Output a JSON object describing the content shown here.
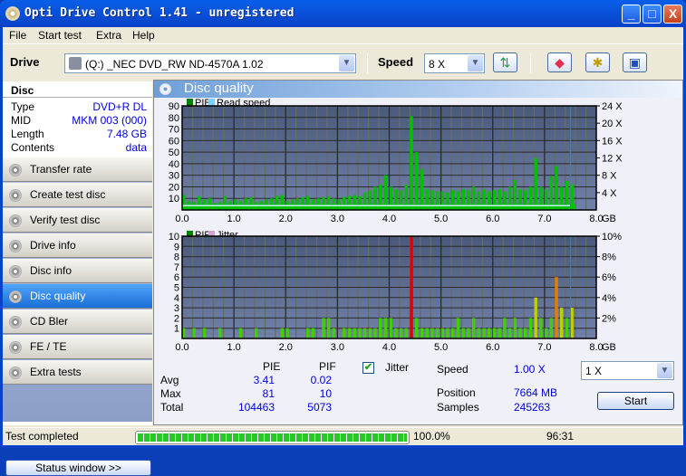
{
  "window": {
    "title": "Opti Drive Control 1.41 - unregistered",
    "minimize": "_",
    "maximize": "□",
    "close": "X"
  },
  "menu": [
    "File",
    "Start test",
    "Extra",
    "Help"
  ],
  "toolbar": {
    "drive_label": "Drive",
    "drive_value": "(Q:)   _NEC DVD_RW ND-4570A 1.02",
    "speed_label": "Speed",
    "speed_value": "8 X",
    "icons": [
      "refresh-icon",
      "eraser-icon",
      "burn-settings-icon",
      "save-icon"
    ]
  },
  "disc": {
    "header": "Disc",
    "rows": [
      {
        "k": "Type",
        "v": "DVD+R DL"
      },
      {
        "k": "MID",
        "v": "MKM 003 (000)"
      },
      {
        "k": "Length",
        "v": "7.48 GB"
      },
      {
        "k": "Contents",
        "v": "data"
      }
    ]
  },
  "nav": [
    {
      "label": "Transfer rate"
    },
    {
      "label": "Create test disc"
    },
    {
      "label": "Verify test disc"
    },
    {
      "label": "Drive info"
    },
    {
      "label": "Disc info"
    },
    {
      "label": "Disc quality",
      "selected": true
    },
    {
      "label": "CD Bler"
    },
    {
      "label": "FE / TE"
    },
    {
      "label": "Extra tests"
    }
  ],
  "status_window_button": "Status window >>",
  "panel_title": "Disc quality",
  "chart_data": [
    {
      "type": "bar",
      "legend": [
        "PIE",
        "Read speed"
      ],
      "colors": {
        "PIE": "#00c000",
        "Read speed": "#80d0ff"
      },
      "x_ticks": [
        "0.0",
        "1.0",
        "2.0",
        "3.0",
        "4.0",
        "5.0",
        "6.0",
        "7.0",
        "8.0"
      ],
      "x_unit": "GB",
      "xlim": [
        0,
        8
      ],
      "y_ticks": [
        "10",
        "20",
        "30",
        "40",
        "50",
        "60",
        "70",
        "80",
        "90"
      ],
      "ylim": [
        0,
        90
      ],
      "y2_ticks": [
        "4 X",
        "8 X",
        "12 X",
        "16 X",
        "20 X",
        "24 X"
      ],
      "y2lim": [
        0,
        24
      ],
      "x_step": 0.1,
      "values": [
        13,
        8,
        7,
        12,
        9,
        10,
        6,
        7,
        12,
        8,
        9,
        8,
        10,
        11,
        7,
        8,
        9,
        10,
        12,
        13,
        8,
        9,
        10,
        11,
        12,
        9,
        10,
        11,
        12,
        10,
        9,
        11,
        12,
        13,
        12,
        15,
        17,
        20,
        22,
        30,
        20,
        18,
        17,
        22,
        81,
        50,
        35,
        18,
        17,
        16,
        16,
        15,
        17,
        16,
        18,
        17,
        20,
        16,
        18,
        16,
        17,
        18,
        16,
        20,
        26,
        18,
        17,
        20,
        45,
        20,
        18,
        29,
        38,
        20,
        25,
        22
      ],
      "read_speed": 1.0,
      "end_marker_gb": 7.5
    },
    {
      "type": "bar",
      "legend": [
        "PIF",
        "Jitter"
      ],
      "colors": {
        "PIF": "#40d000",
        "Jitter": "#d8a0d8"
      },
      "x_ticks": [
        "0.0",
        "1.0",
        "2.0",
        "3.0",
        "4.0",
        "5.0",
        "6.0",
        "7.0",
        "8.0"
      ],
      "x_unit": "GB",
      "xlim": [
        0,
        8
      ],
      "y_ticks": [
        "1",
        "2",
        "3",
        "4",
        "5",
        "6",
        "7",
        "8",
        "9",
        "10"
      ],
      "ylim": [
        0,
        10
      ],
      "y2_ticks": [
        "2%",
        "4%",
        "6%",
        "8%",
        "10%"
      ],
      "y2lim": [
        0,
        10
      ],
      "x_step": 0.1,
      "values": [
        1,
        0,
        1,
        0,
        1,
        0,
        0,
        1,
        0,
        0,
        0,
        1,
        0,
        0,
        1,
        0,
        0,
        0,
        0,
        1,
        1,
        0,
        0,
        0,
        1,
        1,
        0,
        2,
        2,
        1,
        0,
        1,
        1,
        1,
        1,
        1,
        1,
        1,
        2,
        2,
        2,
        1,
        1,
        1,
        10,
        2,
        1,
        1,
        1,
        1,
        1,
        1,
        1,
        2,
        1,
        1,
        2,
        1,
        1,
        1,
        1,
        1,
        2,
        1,
        2,
        1,
        1,
        2,
        4,
        2,
        1,
        2,
        6,
        3,
        2,
        3
      ],
      "end_marker_gb": 7.5
    }
  ],
  "stats": {
    "col_pie": "PIE",
    "col_pif": "PIF",
    "rows": [
      {
        "k": "Avg",
        "pie": "3.41",
        "pif": "0.02"
      },
      {
        "k": "Max",
        "pie": "81",
        "pif": "10"
      },
      {
        "k": "Total",
        "pie": "104463",
        "pif": "5073"
      }
    ],
    "jitter_label": "Jitter",
    "jitter_checked": true,
    "speed_label": "Speed",
    "speed_value": "1.00 X",
    "speed_select": "1 X",
    "position_label": "Position",
    "position_value": "7664 MB",
    "samples_label": "Samples",
    "samples_value": "245263",
    "start_label": "Start"
  },
  "statusbar": {
    "text": "Test completed",
    "progress": 100,
    "progress_text": "100.0%",
    "time": "96:31"
  }
}
